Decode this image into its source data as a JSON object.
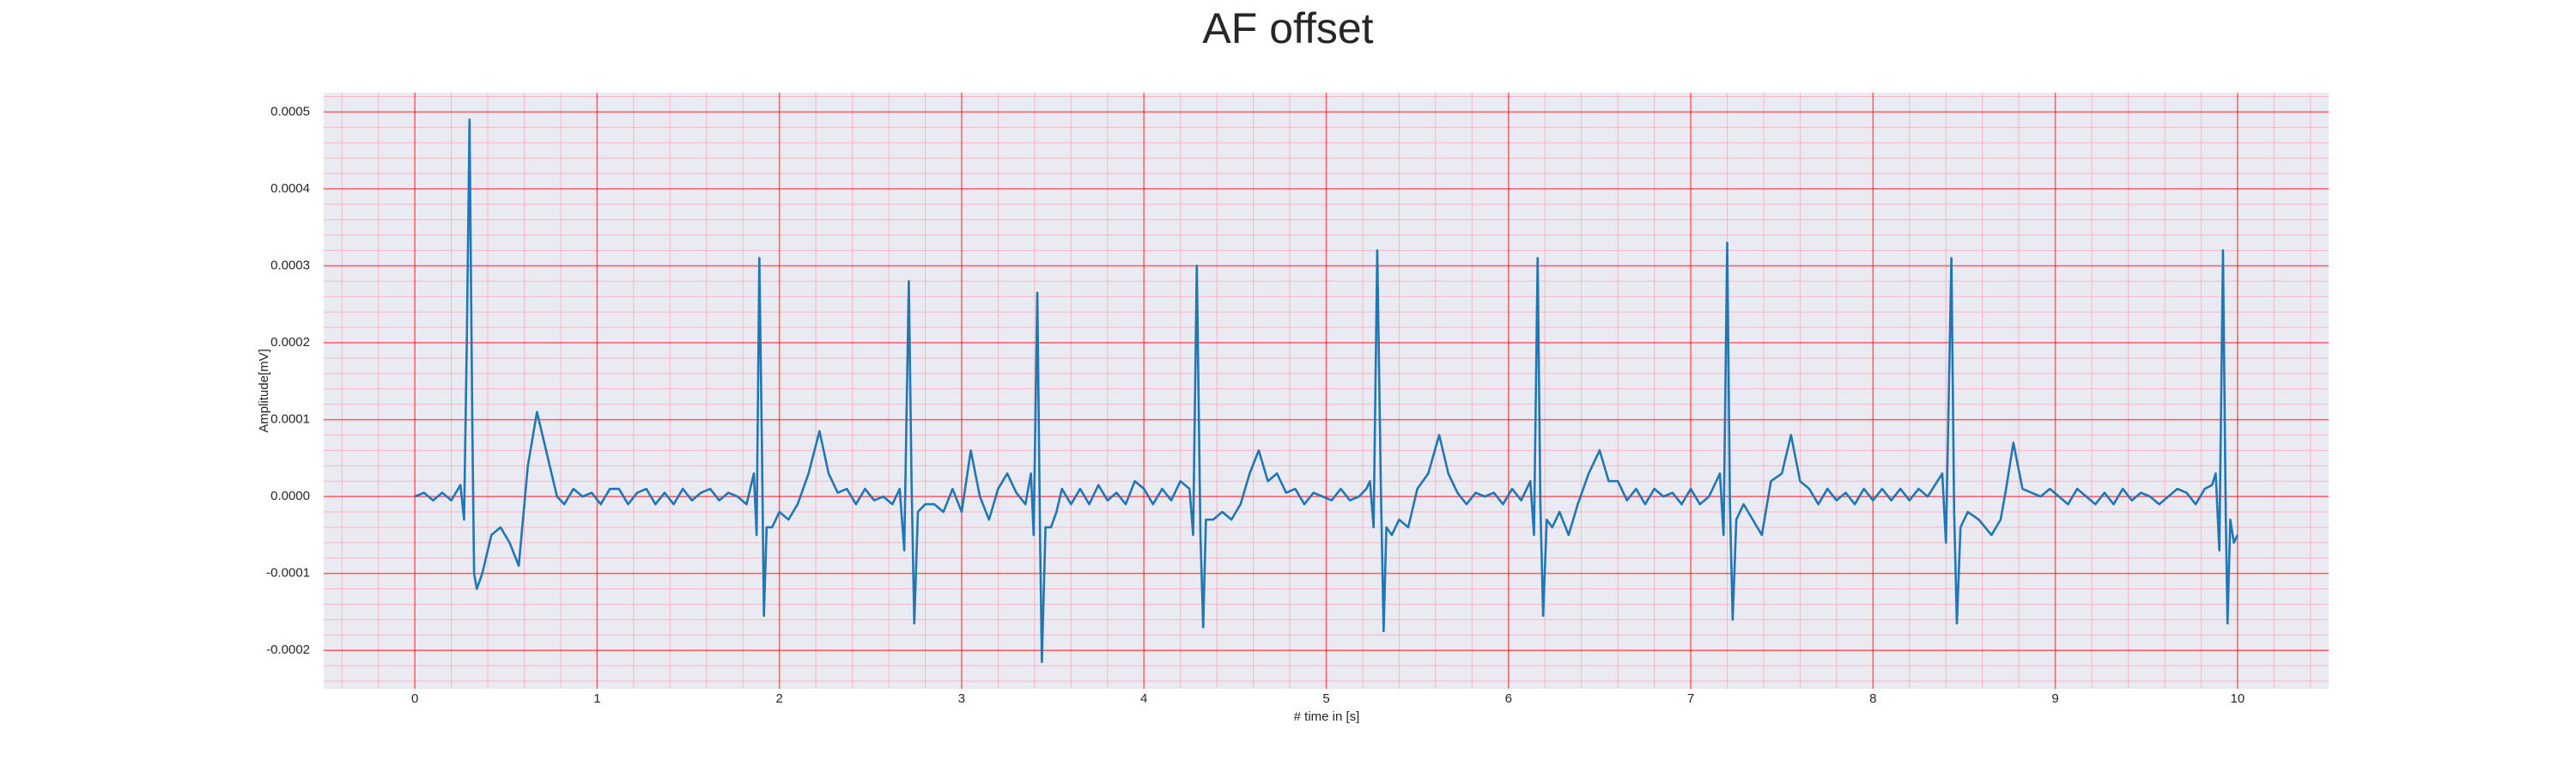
{
  "chart_data": {
    "type": "line",
    "title": "AF offset",
    "x_label": "# time in [s]",
    "y_label": "Amplitude[mV]",
    "color": "#1f77b4",
    "grid": true,
    "grid_color": "#ff0000",
    "minor_grid": true,
    "minor_grid_color": "#f7b6c2",
    "background": "#eaeaf2",
    "xlim": [
      -0.5,
      10.5
    ],
    "xticks": [
      0,
      1,
      2,
      3,
      4,
      5,
      6,
      7,
      8,
      9,
      10
    ],
    "ylim": [
      -0.00025,
      0.000525
    ],
    "yticks": [
      -0.0002,
      -0.0001,
      {
        "value": 0,
        "label": "0.0000"
      },
      0.0001,
      0.0002,
      0.0003,
      0.0004,
      0.0005
    ],
    "x": [
      0.0,
      0.05,
      0.1,
      0.15,
      0.2,
      0.25,
      0.27,
      0.285,
      0.3,
      0.315,
      0.325,
      0.34,
      0.37,
      0.42,
      0.47,
      0.52,
      0.57,
      0.62,
      0.67,
      0.72,
      0.78,
      0.82,
      0.87,
      0.92,
      0.97,
      1.02,
      1.07,
      1.12,
      1.17,
      1.22,
      1.27,
      1.32,
      1.37,
      1.42,
      1.47,
      1.52,
      1.57,
      1.62,
      1.67,
      1.72,
      1.77,
      1.82,
      1.86,
      1.875,
      1.89,
      1.905,
      1.915,
      1.93,
      1.96,
      2.0,
      2.05,
      2.1,
      2.16,
      2.22,
      2.27,
      2.32,
      2.37,
      2.42,
      2.47,
      2.52,
      2.57,
      2.62,
      2.66,
      2.685,
      2.71,
      2.725,
      2.74,
      2.76,
      2.8,
      2.85,
      2.9,
      2.95,
      3.0,
      3.05,
      3.1,
      3.15,
      3.2,
      3.25,
      3.3,
      3.35,
      3.38,
      3.395,
      3.415,
      3.43,
      3.44,
      3.46,
      3.49,
      3.52,
      3.55,
      3.6,
      3.65,
      3.7,
      3.75,
      3.8,
      3.85,
      3.9,
      3.95,
      4.0,
      4.05,
      4.1,
      4.15,
      4.2,
      4.25,
      4.27,
      4.29,
      4.31,
      4.325,
      4.34,
      4.38,
      4.43,
      4.48,
      4.53,
      4.58,
      4.63,
      4.68,
      4.73,
      4.78,
      4.83,
      4.88,
      4.93,
      4.98,
      5.03,
      5.08,
      5.13,
      5.18,
      5.22,
      5.24,
      5.26,
      5.28,
      5.3,
      5.315,
      5.33,
      5.36,
      5.4,
      5.45,
      5.5,
      5.56,
      5.62,
      5.67,
      5.72,
      5.77,
      5.82,
      5.87,
      5.92,
      5.97,
      6.02,
      6.07,
      6.12,
      6.14,
      6.16,
      6.175,
      6.19,
      6.21,
      6.24,
      6.28,
      6.33,
      6.38,
      6.44,
      6.5,
      6.55,
      6.6,
      6.65,
      6.7,
      6.75,
      6.8,
      6.85,
      6.9,
      6.95,
      7.0,
      7.05,
      7.1,
      7.16,
      7.18,
      7.2,
      7.215,
      7.23,
      7.25,
      7.29,
      7.34,
      7.39,
      7.44,
      7.5,
      7.55,
      7.6,
      7.65,
      7.7,
      7.75,
      7.8,
      7.85,
      7.9,
      7.95,
      8.0,
      8.05,
      8.1,
      8.15,
      8.2,
      8.25,
      8.3,
      8.38,
      8.4,
      8.43,
      8.445,
      8.46,
      8.48,
      8.52,
      8.58,
      8.65,
      8.7,
      8.73,
      8.77,
      8.82,
      8.87,
      8.92,
      8.97,
      9.02,
      9.07,
      9.12,
      9.17,
      9.22,
      9.27,
      9.32,
      9.37,
      9.42,
      9.47,
      9.52,
      9.57,
      9.62,
      9.67,
      9.72,
      9.77,
      9.82,
      9.86,
      9.88,
      9.9,
      9.92,
      9.935,
      9.945,
      9.96,
      9.98,
      10.0
    ],
    "values": [
      0,
      5e-06,
      -5e-06,
      5e-06,
      -5e-06,
      1.5e-05,
      -3e-05,
      0.0002,
      0.00049,
      0.0001,
      -0.0001,
      -0.00012,
      -0.0001,
      -5e-05,
      -4e-05,
      -6e-05,
      -9e-05,
      4e-05,
      0.00011,
      6e-05,
      0,
      -1e-05,
      1e-05,
      0,
      5e-06,
      -1e-05,
      1e-05,
      1e-05,
      -1e-05,
      5e-06,
      1e-05,
      -1e-05,
      5e-06,
      -1e-05,
      1e-05,
      -5e-06,
      5e-06,
      1e-05,
      -5e-06,
      5e-06,
      0,
      -1e-05,
      3e-05,
      -5e-05,
      0.00031,
      5e-05,
      -0.000155,
      -4e-05,
      -4e-05,
      -2e-05,
      -3e-05,
      -1e-05,
      3e-05,
      8.5e-05,
      3e-05,
      5e-06,
      1e-05,
      -1e-05,
      1e-05,
      -5e-06,
      0,
      -1e-05,
      1e-05,
      -7e-05,
      0.00028,
      2e-05,
      -0.000165,
      -2e-05,
      -1e-05,
      -1e-05,
      -2e-05,
      1e-05,
      -2e-05,
      6e-05,
      0,
      -3e-05,
      1e-05,
      3e-05,
      5e-06,
      -1e-05,
      3e-05,
      -5e-05,
      0.000265,
      -5e-05,
      -0.000215,
      -4e-05,
      -4e-05,
      -2e-05,
      1e-05,
      -1e-05,
      1e-05,
      -1e-05,
      1.5e-05,
      -5e-06,
      5e-06,
      -1e-05,
      2e-05,
      1e-05,
      -1e-05,
      1e-05,
      -5e-06,
      2e-05,
      1e-05,
      -5e-05,
      0.0003,
      -5e-05,
      -0.00017,
      -3e-05,
      -3e-05,
      -2e-05,
      -3e-05,
      -1e-05,
      3e-05,
      6e-05,
      2e-05,
      3e-05,
      5e-06,
      1e-05,
      -1e-05,
      5e-06,
      0,
      -5e-06,
      1e-05,
      -5e-06,
      0,
      1e-05,
      2e-05,
      -4e-05,
      0.00032,
      1e-05,
      -0.000175,
      -4e-05,
      -5e-05,
      -3e-05,
      -4e-05,
      1e-05,
      3e-05,
      8e-05,
      3e-05,
      5e-06,
      -1e-05,
      5e-06,
      0,
      5e-06,
      -1e-05,
      1e-05,
      -5e-06,
      2e-05,
      -5e-05,
      0.00031,
      -1e-05,
      -0.000155,
      -3e-05,
      -4e-05,
      -2e-05,
      -5e-05,
      -1e-05,
      3e-05,
      6e-05,
      2e-05,
      2e-05,
      -5e-06,
      1e-05,
      -1e-05,
      1e-05,
      0,
      5e-06,
      -1e-05,
      1e-05,
      -1e-05,
      0,
      3e-05,
      -5e-05,
      0.00033,
      -1e-05,
      -0.00016,
      -3e-05,
      -1e-05,
      -3e-05,
      -5e-05,
      2e-05,
      3e-05,
      8e-05,
      2e-05,
      1e-05,
      -1e-05,
      1e-05,
      -5e-06,
      5e-06,
      -1e-05,
      1e-05,
      -5e-06,
      1e-05,
      -5e-06,
      1e-05,
      -5e-06,
      1e-05,
      0,
      3e-05,
      -6e-05,
      0.00031,
      -2e-05,
      -0.000165,
      -4e-05,
      -2e-05,
      -3e-05,
      -5e-05,
      -3e-05,
      1e-05,
      7e-05,
      1e-05,
      5e-06,
      0,
      1e-05,
      0,
      -1e-05,
      1e-05,
      0,
      -1e-05,
      5e-06,
      -1e-05,
      1e-05,
      -5e-06,
      5e-06,
      0,
      -1e-05,
      0,
      1e-05,
      5e-06,
      -1e-05,
      1e-05,
      1.5e-05,
      3e-05,
      -7e-05,
      0.00032,
      -2e-05,
      -0.000165,
      -3e-05,
      -6e-05,
      -5e-05
    ]
  }
}
